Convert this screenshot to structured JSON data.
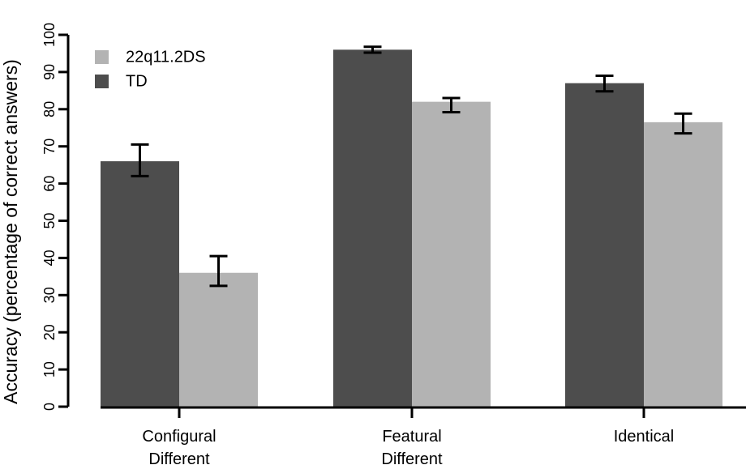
{
  "chart_data": {
    "type": "bar",
    "title": "",
    "xlabel": "",
    "ylabel": "Accuracy (percentage of correct answers)",
    "ylim": [
      0,
      100
    ],
    "yticks": [
      0,
      10,
      20,
      30,
      40,
      50,
      60,
      70,
      80,
      90,
      100
    ],
    "categories": [
      [
        "Configural",
        "Different"
      ],
      [
        "Featural",
        "Different"
      ],
      [
        "Identical"
      ]
    ],
    "series": [
      {
        "name": "TD",
        "color": "#4d4d4d",
        "values": [
          66,
          96,
          87
        ],
        "error": [
          [
            62,
            70.5
          ],
          [
            95.2,
            96.8
          ],
          [
            84.8,
            89
          ]
        ]
      },
      {
        "name": "22q11.2DS",
        "color": "#b3b3b3",
        "values": [
          36,
          82,
          76.5
        ],
        "error": [
          [
            32.5,
            40.5
          ],
          [
            79.2,
            83
          ],
          [
            73.5,
            78.8
          ]
        ]
      }
    ],
    "legend": {
      "position": "top-left",
      "items": [
        {
          "label": "22q11.2DS",
          "color": "#b3b3b3"
        },
        {
          "label": "TD",
          "color": "#4d4d4d"
        }
      ]
    }
  }
}
